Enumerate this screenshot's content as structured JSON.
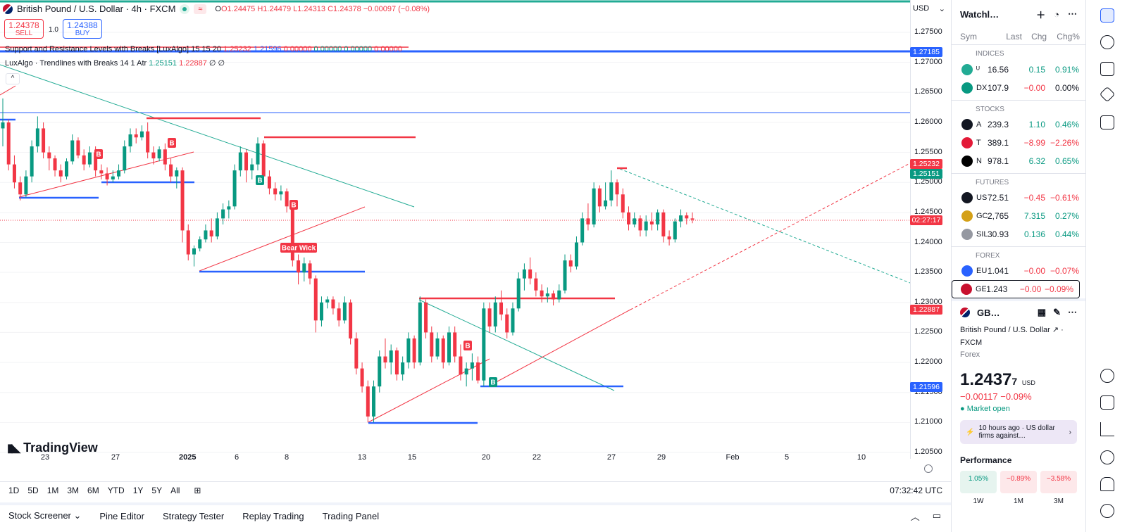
{
  "header": {
    "symbol_title": "British Pound / U.S. Dollar · 4h · FXCM",
    "ohlc": {
      "o": "O1.24475",
      "h": "H1.24479",
      "l": "L1.24313",
      "c": "C1.24378",
      "chg": "−0.00097 (−0.08%)"
    },
    "sell_price": "1.24378",
    "sell_label": "SELL",
    "buy_price": "1.24388",
    "buy_label": "BUY",
    "qty": "1.0",
    "indicator1": {
      "name": "Support and Resistance Levels with Breaks [LuxAlgo] 15 15 20",
      "v1": "1.25232",
      "v2": "1.21596",
      "v3": "0.00000",
      "v4": "0.00000",
      "v5": "0.00000",
      "v6": "0.00000"
    },
    "indicator2": {
      "name": "LuxAlgo · Trendlines with Breaks 14 1 Atr",
      "v1": "1.25151",
      "v2": "1.22887",
      "v3": "∅ ∅"
    }
  },
  "currency_select": "USD",
  "logo_text": "TradingView",
  "price_axis": {
    "ticks": [
      "1.27500",
      "1.27000",
      "1.26500",
      "1.26000",
      "1.25500",
      "1.25000",
      "1.24500",
      "1.24000",
      "1.23500",
      "1.23000",
      "1.22500",
      "1.22000",
      "1.21500",
      "1.21000",
      "1.20500"
    ],
    "tags": [
      {
        "text": "1.27185",
        "color": "#2962ff"
      },
      {
        "text": "1.25232",
        "color": "#f23645"
      },
      {
        "text": "1.25151",
        "color": "#089981"
      },
      {
        "text": "02:27:17",
        "color": "#f23645"
      },
      {
        "text": "1.22887",
        "color": "#f23645"
      },
      {
        "text": "1.21596",
        "color": "#2962ff"
      }
    ]
  },
  "time_axis": [
    "23",
    "27",
    "2025",
    "6",
    "8",
    "13",
    "15",
    "20",
    "22",
    "27",
    "29",
    "Feb",
    "5",
    "10"
  ],
  "chart_labels": {
    "bear_wick": "Bear Wick",
    "b": "B"
  },
  "range_bar": {
    "ranges": [
      "1D",
      "5D",
      "1M",
      "3M",
      "6M",
      "YTD",
      "1Y",
      "5Y",
      "All"
    ],
    "clock": "07:32:42 UTC"
  },
  "bottom_tabs": [
    "Stock Screener",
    "Pine Editor",
    "Strategy Tester",
    "Replay Trading",
    "Trading Panel"
  ],
  "watchlist": {
    "title": "Watchl…",
    "columns": [
      "Sym",
      "Last",
      "Chg",
      "Chg%"
    ],
    "sections": [
      {
        "name": "INDICES",
        "rows": [
          {
            "sym": "ᵁ",
            "last": "16.56",
            "chg": "0.15",
            "pct": "0.91%",
            "icon": "#22ab94",
            "dir": "pos"
          },
          {
            "sym": "DX",
            "last": "107.9",
            "chg": "−0.00",
            "pct": "0.00%",
            "icon": "#089981",
            "dir": "neg"
          }
        ]
      },
      {
        "name": "STOCKS",
        "rows": [
          {
            "sym": "A",
            "last": "239.3",
            "chg": "1.10",
            "pct": "0.46%",
            "icon": "#131722",
            "dir": "pos"
          },
          {
            "sym": "T",
            "last": "389.1",
            "chg": "−8.99",
            "pct": "−2.26%",
            "icon": "#e31937",
            "dir": "neg"
          },
          {
            "sym": "N",
            "last": "978.1",
            "chg": "6.32",
            "pct": "0.65%",
            "icon": "#000000",
            "dir": "pos"
          }
        ]
      },
      {
        "name": "FUTURES",
        "rows": [
          {
            "sym": "US",
            "last": "72.51",
            "chg": "−0.45",
            "pct": "−0.61%",
            "icon": "#131722",
            "dir": "neg"
          },
          {
            "sym": "GC",
            "last": "2,765",
            "chg": "7.315",
            "pct": "0.27%",
            "icon": "#d4a017",
            "dir": "pos"
          },
          {
            "sym": "SIL",
            "last": "30.93",
            "chg": "0.136",
            "pct": "0.44%",
            "icon": "#9598a1",
            "dir": "pos"
          }
        ]
      },
      {
        "name": "FOREX",
        "rows": [
          {
            "sym": "EU",
            "last": "1.041",
            "chg": "−0.00",
            "pct": "−0.07%",
            "icon": "#2962ff",
            "dir": "neg"
          },
          {
            "sym": "GE",
            "last": "1.243",
            "chg": "−0.00",
            "pct": "−0.09%",
            "icon": "#c8102e",
            "dir": "neg",
            "selected": true
          }
        ]
      }
    ]
  },
  "detail": {
    "short": "GB…",
    "name": "British Pound / U.S. Dollar",
    "exchange": "FXCM",
    "type": "Forex",
    "price": "1.2437",
    "price_small": "7",
    "currency": "USD",
    "change": "−0.00117  −0.09%",
    "market": "Market open",
    "news": "10 hours ago · US dollar firms against…",
    "perf_title": "Performance",
    "perf": [
      {
        "v": "1.05%",
        "p": "1W",
        "bg": "#e6f4ef",
        "c": "#089981"
      },
      {
        "v": "−0.89%",
        "p": "1M",
        "bg": "#fde8ea",
        "c": "#f23645"
      },
      {
        "v": "−3.58%",
        "p": "3M",
        "bg": "#fde8ea",
        "c": "#f23645"
      }
    ]
  },
  "chart_data": {
    "type": "candlestick",
    "candles": [
      [
        1.259,
        1.264,
        1.256,
        1.26
      ],
      [
        1.26,
        1.2605,
        1.252,
        1.253
      ],
      [
        1.253,
        1.2545,
        1.249,
        1.25
      ],
      [
        1.25,
        1.251,
        1.247,
        1.248
      ],
      [
        1.248,
        1.252,
        1.2475,
        1.251
      ],
      [
        1.251,
        1.257,
        1.25,
        1.256
      ],
      [
        1.256,
        1.261,
        1.255,
        1.259
      ],
      [
        1.259,
        1.26,
        1.254,
        1.255
      ],
      [
        1.255,
        1.256,
        1.252,
        1.254
      ],
      [
        1.254,
        1.2545,
        1.251,
        1.252
      ],
      [
        1.252,
        1.253,
        1.25,
        1.251
      ],
      [
        1.251,
        1.254,
        1.2505,
        1.2535
      ],
      [
        1.2535,
        1.258,
        1.253,
        1.257
      ],
      [
        1.257,
        1.2575,
        1.254,
        1.2545
      ],
      [
        1.2545,
        1.2555,
        1.252,
        1.253
      ],
      [
        1.253,
        1.256,
        1.2525,
        1.255
      ],
      [
        1.255,
        1.256,
        1.251,
        1.252
      ],
      [
        1.252,
        1.253,
        1.2505,
        1.2515
      ],
      [
        1.2515,
        1.2525,
        1.2495,
        1.2505
      ],
      [
        1.2505,
        1.252,
        1.25,
        1.251
      ],
      [
        1.251,
        1.253,
        1.2505,
        1.252
      ],
      [
        1.252,
        1.257,
        1.2515,
        1.256
      ],
      [
        1.256,
        1.259,
        1.255,
        1.258
      ],
      [
        1.258,
        1.259,
        1.2565,
        1.2575
      ],
      [
        1.2575,
        1.2595,
        1.257,
        1.2585
      ],
      [
        1.2585,
        1.26,
        1.254,
        1.255
      ],
      [
        1.255,
        1.256,
        1.253,
        1.254
      ],
      [
        1.254,
        1.256,
        1.2535,
        1.2555
      ],
      [
        1.2555,
        1.2565,
        1.252,
        1.253
      ],
      [
        1.253,
        1.254,
        1.25,
        1.251
      ],
      [
        1.251,
        1.2525,
        1.249,
        1.252
      ],
      [
        1.252,
        1.2525,
        1.24,
        1.242
      ],
      [
        1.242,
        1.243,
        1.237,
        1.238
      ],
      [
        1.238,
        1.2395,
        1.236,
        1.239
      ],
      [
        1.239,
        1.241,
        1.2385,
        1.2405
      ],
      [
        1.2405,
        1.243,
        1.24,
        1.242
      ],
      [
        1.242,
        1.244,
        1.24,
        1.241
      ],
      [
        1.241,
        1.245,
        1.2405,
        1.244
      ],
      [
        1.244,
        1.2465,
        1.243,
        1.2455
      ],
      [
        1.2455,
        1.247,
        1.244,
        1.246
      ],
      [
        1.246,
        1.253,
        1.2455,
        1.252
      ],
      [
        1.252,
        1.256,
        1.251,
        1.255
      ],
      [
        1.255,
        1.2555,
        1.25,
        1.252
      ],
      [
        1.252,
        1.254,
        1.2505,
        1.253
      ],
      [
        1.253,
        1.2575,
        1.252,
        1.2565
      ],
      [
        1.2565,
        1.257,
        1.25,
        1.251
      ],
      [
        1.251,
        1.252,
        1.248,
        1.249
      ],
      [
        1.249,
        1.25,
        1.247,
        1.248
      ],
      [
        1.248,
        1.2495,
        1.247,
        1.2485
      ],
      [
        1.2485,
        1.249,
        1.245,
        1.246
      ],
      [
        1.246,
        1.247,
        1.236,
        1.237
      ],
      [
        1.237,
        1.238,
        1.233,
        1.235
      ],
      [
        1.235,
        1.2375,
        1.2335,
        1.2365
      ],
      [
        1.2365,
        1.237,
        1.233,
        1.234
      ],
      [
        1.234,
        1.2345,
        1.225,
        1.227
      ],
      [
        1.227,
        1.231,
        1.226,
        1.23
      ],
      [
        1.23,
        1.231,
        1.229,
        1.2305
      ],
      [
        1.2305,
        1.231,
        1.228,
        1.229
      ],
      [
        1.229,
        1.23,
        1.226,
        1.227
      ],
      [
        1.227,
        1.231,
        1.2265,
        1.23
      ],
      [
        1.23,
        1.2305,
        1.223,
        1.224
      ],
      [
        1.224,
        1.225,
        1.218,
        1.219
      ],
      [
        1.219,
        1.22,
        1.215,
        1.216
      ],
      [
        1.216,
        1.217,
        1.21,
        1.211
      ],
      [
        1.211,
        1.217,
        1.21,
        1.216
      ],
      [
        1.216,
        1.222,
        1.215,
        1.221
      ],
      [
        1.221,
        1.224,
        1.219,
        1.22
      ],
      [
        1.22,
        1.223,
        1.218,
        1.222
      ],
      [
        1.222,
        1.2225,
        1.217,
        1.218
      ],
      [
        1.218,
        1.221,
        1.217,
        1.22
      ],
      [
        1.22,
        1.225,
        1.219,
        1.224
      ],
      [
        1.224,
        1.2245,
        1.219,
        1.22
      ],
      [
        1.22,
        1.231,
        1.2195,
        1.23
      ],
      [
        1.23,
        1.2305,
        1.224,
        1.225
      ],
      [
        1.225,
        1.226,
        1.22,
        1.221
      ],
      [
        1.221,
        1.225,
        1.2205,
        1.224
      ],
      [
        1.224,
        1.2245,
        1.219,
        1.22
      ],
      [
        1.22,
        1.226,
        1.2195,
        1.225
      ],
      [
        1.225,
        1.226,
        1.22,
        1.221
      ],
      [
        1.221,
        1.223,
        1.217,
        1.218
      ],
      [
        1.218,
        1.22,
        1.216,
        1.219
      ],
      [
        1.219,
        1.2215,
        1.217,
        1.22
      ],
      [
        1.22,
        1.221,
        1.2165,
        1.217
      ],
      [
        1.217,
        1.23,
        1.216,
        1.229
      ],
      [
        1.229,
        1.23,
        1.225,
        1.226
      ],
      [
        1.226,
        1.231,
        1.225,
        1.23
      ],
      [
        1.23,
        1.232,
        1.227,
        1.228
      ],
      [
        1.228,
        1.229,
        1.224,
        1.225
      ],
      [
        1.225,
        1.23,
        1.2245,
        1.229
      ],
      [
        1.229,
        1.235,
        1.2285,
        1.234
      ],
      [
        1.234,
        1.2365,
        1.232,
        1.2355
      ],
      [
        1.2355,
        1.2375,
        1.233,
        1.234
      ],
      [
        1.234,
        1.235,
        1.231,
        1.232
      ],
      [
        1.232,
        1.233,
        1.23,
        1.231
      ],
      [
        1.231,
        1.2325,
        1.23,
        1.2315
      ],
      [
        1.2315,
        1.232,
        1.2295,
        1.2305
      ],
      [
        1.2305,
        1.233,
        1.23,
        1.232
      ],
      [
        1.232,
        1.238,
        1.2315,
        1.237
      ],
      [
        1.237,
        1.238,
        1.235,
        1.236
      ],
      [
        1.236,
        1.241,
        1.2355,
        1.24
      ],
      [
        1.24,
        1.245,
        1.2395,
        1.244
      ],
      [
        1.244,
        1.2465,
        1.242,
        1.243
      ],
      [
        1.243,
        1.25,
        1.2425,
        1.249
      ],
      [
        1.249,
        1.2495,
        1.245,
        1.246
      ],
      [
        1.246,
        1.25,
        1.2455,
        1.247
      ],
      [
        1.247,
        1.252,
        1.246,
        1.25
      ],
      [
        1.25,
        1.2505,
        1.246,
        1.248
      ],
      [
        1.248,
        1.249,
        1.244,
        1.245
      ],
      [
        1.245,
        1.246,
        1.242,
        1.243
      ],
      [
        1.243,
        1.245,
        1.2425,
        1.244
      ],
      [
        1.244,
        1.2445,
        1.241,
        1.242
      ],
      [
        1.242,
        1.2445,
        1.241,
        1.2435
      ],
      [
        1.2435,
        1.245,
        1.242,
        1.243
      ],
      [
        1.243,
        1.2455,
        1.242,
        1.245
      ],
      [
        1.245,
        1.2455,
        1.24,
        1.241
      ],
      [
        1.241,
        1.242,
        1.2395,
        1.2405
      ],
      [
        1.2405,
        1.244,
        1.24,
        1.2435
      ],
      [
        1.2435,
        1.2455,
        1.2425,
        1.2445
      ],
      [
        1.2445,
        1.245,
        1.243,
        1.244
      ],
      [
        1.244,
        1.245,
        1.2432,
        1.2438
      ]
    ],
    "ylim": [
      1.2025,
      1.28
    ],
    "y_ticks": [
      1.275,
      1.27,
      1.265,
      1.26,
      1.255,
      1.25,
      1.245,
      1.24,
      1.235,
      1.23,
      1.225,
      1.22,
      1.215,
      1.21,
      1.205
    ],
    "up_color": "#089981",
    "down_color": "#f23645"
  }
}
